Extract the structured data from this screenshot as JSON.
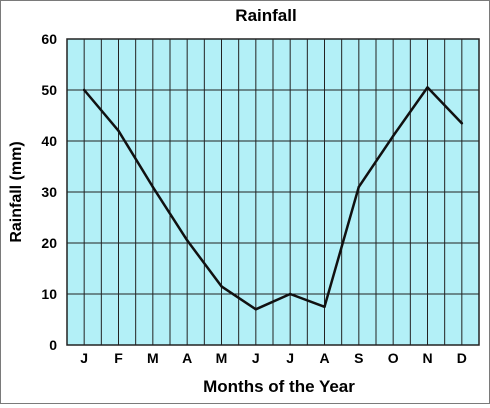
{
  "chart_data": {
    "type": "line",
    "title": "Rainfall",
    "xlabel": "Months of the Year",
    "ylabel": "Rainfall (mm)",
    "categories": [
      "J",
      "F",
      "M",
      "A",
      "M",
      "J",
      "J",
      "A",
      "S",
      "O",
      "N",
      "D"
    ],
    "series": [
      {
        "values": [
          50,
          42,
          31,
          20.5,
          11.5,
          7,
          10,
          7.5,
          31,
          41,
          50.5,
          43.5
        ]
      }
    ],
    "ylim": [
      0,
      60
    ],
    "yticks": [
      "0",
      "10",
      "20",
      "30",
      "40",
      "50",
      "60"
    ],
    "grid": true,
    "colors": {
      "plot_background": "#b3f0f7",
      "grid": "#222222",
      "line": "#111111"
    }
  }
}
